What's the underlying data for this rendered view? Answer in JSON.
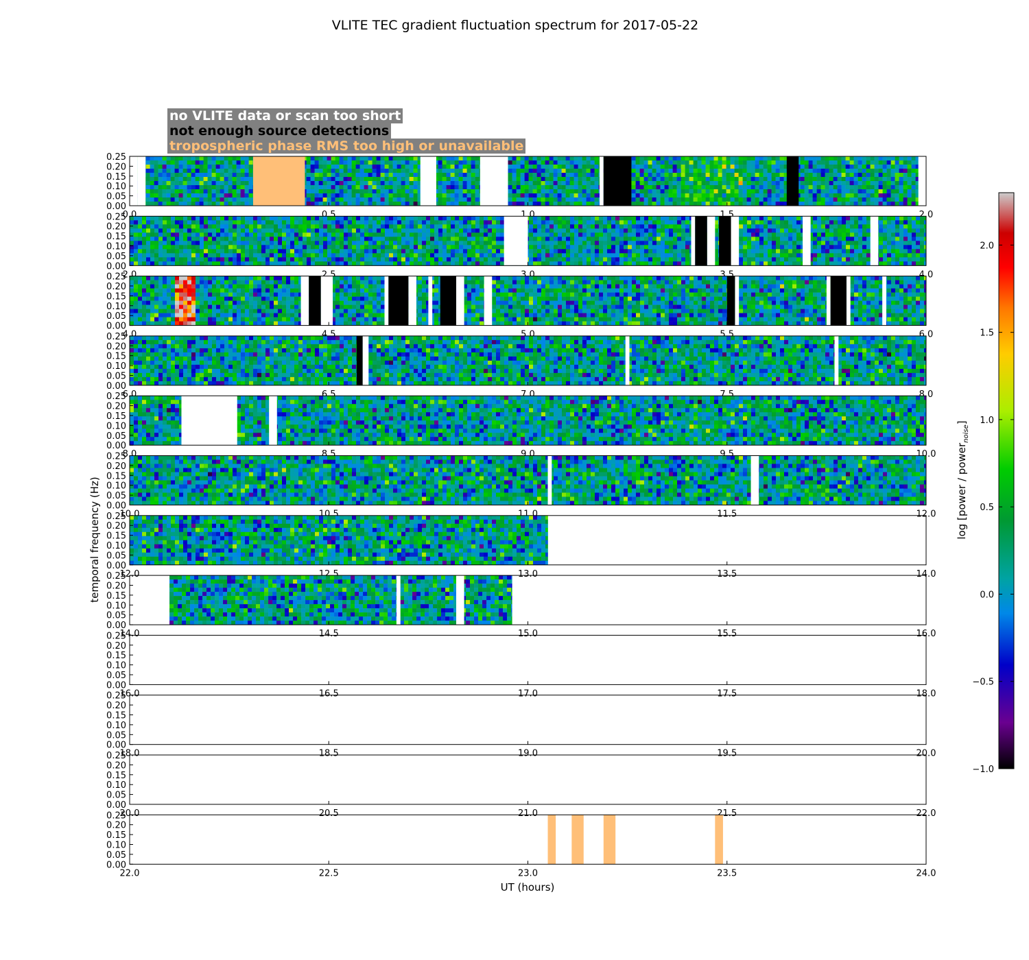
{
  "chart_data": {
    "type": "heatmap",
    "title": "VLITE TEC gradient fluctuation spectrum for 2017-05-22",
    "xlabel": "UT (hours)",
    "ylabel": "temporal frequency (Hz)",
    "ylim": [
      0,
      0.25
    ],
    "yticks": [
      "0.00",
      "0.05",
      "0.10",
      "0.15",
      "0.20",
      "0.25"
    ],
    "colorbar": {
      "label": "log [power / power",
      "label_subscript": "noise",
      "label_close": "]",
      "range": [
        -1.0,
        2.3
      ],
      "ticks": [
        "−1.0",
        "−0.5",
        "0.0",
        "0.5",
        "1.0",
        "1.5",
        "2.0"
      ],
      "tick_values": [
        -1.0,
        -0.5,
        0.0,
        0.5,
        1.0,
        1.5,
        2.0
      ]
    },
    "legend": [
      {
        "label": "no VLITE data or scan too short",
        "color": "#ffffff"
      },
      {
        "label": "not enough source detections",
        "color": "#000000"
      },
      {
        "label": "tropospheric phase RMS too high or unavailable",
        "color": "#ffbf78"
      }
    ],
    "colors": {
      "no_data": "#ffffff",
      "few_detections": "#000000",
      "tropo_rms": "#ffbf78",
      "legend_bg": "#808080"
    },
    "panels": [
      {
        "range": [
          0,
          2
        ],
        "xticks": [
          "0.0",
          "0.5",
          "1.0",
          "1.5",
          "2.0"
        ],
        "data": [
          0.02,
          1.98
        ],
        "white": [
          [
            0.02,
            0.04
          ],
          [
            0.73,
            0.77
          ],
          [
            0.88,
            0.95
          ],
          [
            1.18,
            1.19
          ]
        ],
        "black": [
          [
            1.19,
            1.26
          ],
          [
            1.65,
            1.68
          ]
        ],
        "orange": [
          [
            0.31,
            0.44
          ]
        ],
        "hot": [
          [
            1.38,
            1.53,
            0.55
          ]
        ]
      },
      {
        "range": [
          2,
          4
        ],
        "xticks": [
          "2.0",
          "2.5",
          "3.0",
          "3.5",
          "4.0"
        ],
        "data": [
          2.0,
          4.0
        ],
        "white": [
          [
            2.94,
            3.0
          ],
          [
            3.41,
            3.42
          ],
          [
            3.45,
            3.47
          ],
          [
            3.51,
            3.53
          ],
          [
            3.69,
            3.71
          ],
          [
            3.86,
            3.88
          ]
        ],
        "black": [
          [
            3.42,
            3.45
          ],
          [
            3.48,
            3.51
          ]
        ],
        "orange": [],
        "hot": [
          [
            3.1,
            3.2,
            0.15
          ]
        ]
      },
      {
        "range": [
          4,
          6
        ],
        "xticks": [
          "4.0",
          "4.5",
          "5.0",
          "5.5",
          "6.0"
        ],
        "data": [
          4.0,
          6.0
        ],
        "white": [
          [
            4.43,
            4.45
          ],
          [
            4.48,
            4.51
          ],
          [
            4.64,
            4.65
          ],
          [
            4.7,
            4.72
          ],
          [
            4.75,
            4.76
          ],
          [
            4.82,
            4.84
          ],
          [
            4.89,
            4.91
          ],
          [
            5.52,
            5.53
          ],
          [
            5.75,
            5.76
          ],
          [
            5.8,
            5.81
          ],
          [
            5.89,
            5.9
          ]
        ],
        "black": [
          [
            4.45,
            4.48
          ],
          [
            4.65,
            4.7
          ],
          [
            4.78,
            4.82
          ],
          [
            5.5,
            5.52
          ],
          [
            5.76,
            5.8
          ]
        ],
        "orange": [],
        "hot": [
          [
            4.11,
            4.16,
            2.0
          ]
        ]
      },
      {
        "range": [
          6,
          8
        ],
        "xticks": [
          "6.0",
          "6.5",
          "7.0",
          "7.5",
          "8.0"
        ],
        "data": [
          6.0,
          8.0
        ],
        "white": [
          [
            6.585,
            6.6
          ],
          [
            7.245,
            7.255
          ],
          [
            7.77,
            7.78
          ]
        ],
        "black": [
          [
            6.57,
            6.585
          ]
        ],
        "orange": [],
        "hot": []
      },
      {
        "range": [
          8,
          10
        ],
        "xticks": [
          "8.0",
          "8.5",
          "9.0",
          "9.5",
          "10.0"
        ],
        "data": [
          8.0,
          10.0
        ],
        "white": [
          [
            8.13,
            8.27
          ],
          [
            8.35,
            8.37
          ]
        ],
        "black": [],
        "orange": [],
        "hot": []
      },
      {
        "range": [
          10,
          12
        ],
        "xticks": [
          "10.0",
          "10.5",
          "11.0",
          "11.5",
          "12.0"
        ],
        "data": [
          10.0,
          12.0
        ],
        "white": [
          [
            11.05,
            11.06
          ],
          [
            11.56,
            11.58
          ]
        ],
        "black": [],
        "orange": [],
        "hot": []
      },
      {
        "range": [
          12,
          14
        ],
        "xticks": [
          "12.0",
          "12.5",
          "13.0",
          "13.5",
          "14.0"
        ],
        "data": [
          12.0,
          13.05
        ],
        "white": [],
        "black": [],
        "orange": [],
        "hot": []
      },
      {
        "range": [
          14,
          16
        ],
        "xticks": [
          "14.0",
          "14.5",
          "15.0",
          "15.5",
          "16.0"
        ],
        "data": [
          14.1,
          14.96
        ],
        "white": [
          [
            14.67,
            14.68
          ],
          [
            14.82,
            14.84
          ]
        ],
        "black": [],
        "orange": [],
        "hot": []
      },
      {
        "range": [
          16,
          18
        ],
        "xticks": [
          "16.0",
          "16.5",
          "17.0",
          "17.5",
          "18.0"
        ],
        "data": null,
        "white": [],
        "black": [],
        "orange": [],
        "hot": []
      },
      {
        "range": [
          18,
          20
        ],
        "xticks": [
          "18.0",
          "18.5",
          "19.0",
          "19.5",
          "20.0"
        ],
        "data": null,
        "white": [],
        "black": [],
        "orange": [],
        "hot": []
      },
      {
        "range": [
          20,
          22
        ],
        "xticks": [
          "20.0",
          "20.5",
          "21.0",
          "21.5",
          "22.0"
        ],
        "data": null,
        "white": [],
        "black": [],
        "orange": [],
        "hot": []
      },
      {
        "range": [
          22,
          24
        ],
        "xticks": [
          "22.0",
          "22.5",
          "23.0",
          "23.5",
          "24.0"
        ],
        "data": null,
        "white": [],
        "black": [],
        "orange": [
          [
            23.05,
            23.07
          ],
          [
            23.11,
            23.14
          ],
          [
            23.19,
            23.22
          ],
          [
            23.47,
            23.49
          ]
        ],
        "hot": []
      }
    ]
  }
}
